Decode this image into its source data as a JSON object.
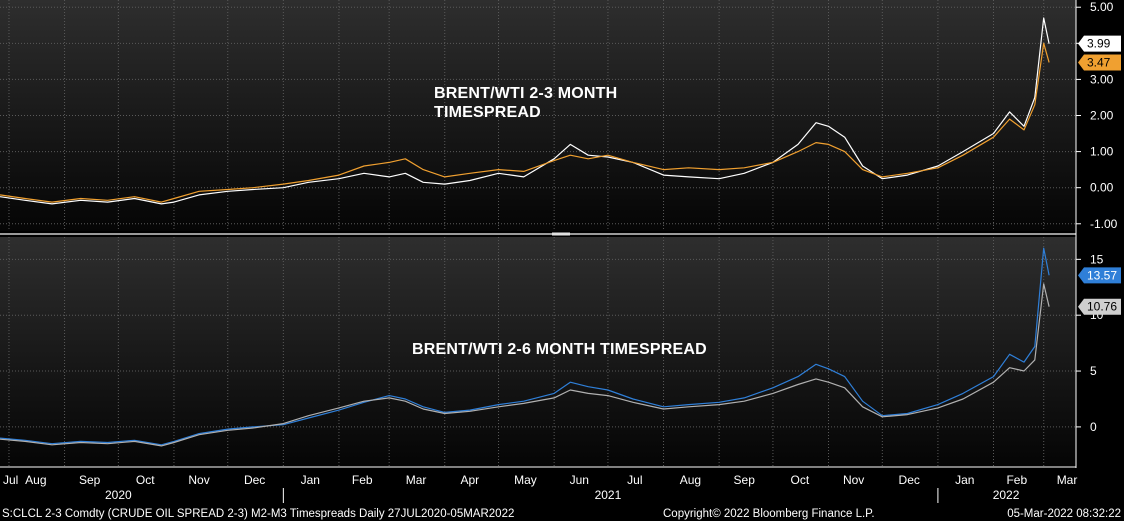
{
  "colors": {
    "background": "#000000",
    "panel_gradient_top": "#2b2b2b",
    "panel_gradient_bottom": "#050505",
    "grid": "#5a5a5a",
    "white_series": "#ffffff",
    "orange_series": "#f0a030",
    "blue_series": "#2f7fd8",
    "grey_series": "#b0b0b0"
  },
  "footer": {
    "left": "S:CLCL 2-3 Comdty (CRUDE OIL SPREAD 2-3) M2-M3 Timespreads Daily 27JUL2020-05MAR2022",
    "center": "Copyright© 2022 Bloomberg Finance L.P.",
    "right": "05-Mar-2022 08:32:22"
  },
  "x_axis": {
    "months": [
      "Jul",
      "Aug",
      "Sep",
      "Oct",
      "Nov",
      "Dec",
      "Jan",
      "Feb",
      "Mar",
      "Apr",
      "May",
      "Jun",
      "Jul",
      "Aug",
      "Sep",
      "Oct",
      "Nov",
      "Dec",
      "Jan",
      "Feb",
      "Mar"
    ],
    "years": [
      "2020",
      "2021",
      "2022"
    ]
  },
  "chart_data": [
    {
      "type": "line",
      "title": "BRENT/WTI 2-3 MONTH TIMESPREAD",
      "title_lines": [
        "BRENT/WTI 2-3 MONTH",
        "TIMESPREAD"
      ],
      "x_range": [
        "2020-07-27",
        "2022-03-05"
      ],
      "ylim": [
        -1.2,
        5.2
      ],
      "yticks": [
        "5.00",
        "4.00",
        "3.00",
        "2.00",
        "1.00",
        "0.00",
        "-1.00"
      ],
      "last_value_labels": [
        "3.99",
        "3.47"
      ],
      "series": [
        {
          "color": "#ffffff",
          "last": 3.99,
          "points": [
            [
              "2020-07-27",
              -0.25
            ],
            [
              "2020-08-10",
              -0.35
            ],
            [
              "2020-08-25",
              -0.45
            ],
            [
              "2020-09-10",
              -0.35
            ],
            [
              "2020-09-25",
              -0.4
            ],
            [
              "2020-10-10",
              -0.3
            ],
            [
              "2020-10-25",
              -0.45
            ],
            [
              "2020-11-01",
              -0.4
            ],
            [
              "2020-11-15",
              -0.2
            ],
            [
              "2020-12-01",
              -0.1
            ],
            [
              "2020-12-15",
              -0.05
            ],
            [
              "2021-01-01",
              0.0
            ],
            [
              "2021-01-15",
              0.15
            ],
            [
              "2021-02-01",
              0.25
            ],
            [
              "2021-02-15",
              0.4
            ],
            [
              "2021-03-01",
              0.3
            ],
            [
              "2021-03-10",
              0.4
            ],
            [
              "2021-03-20",
              0.15
            ],
            [
              "2021-04-01",
              0.1
            ],
            [
              "2021-04-15",
              0.2
            ],
            [
              "2021-05-01",
              0.4
            ],
            [
              "2021-05-15",
              0.3
            ],
            [
              "2021-06-01",
              0.8
            ],
            [
              "2021-06-10",
              1.2
            ],
            [
              "2021-06-20",
              0.9
            ],
            [
              "2021-07-01",
              0.85
            ],
            [
              "2021-07-15",
              0.7
            ],
            [
              "2021-08-01",
              0.35
            ],
            [
              "2021-08-15",
              0.3
            ],
            [
              "2021-09-01",
              0.25
            ],
            [
              "2021-09-15",
              0.4
            ],
            [
              "2021-10-01",
              0.7
            ],
            [
              "2021-10-15",
              1.2
            ],
            [
              "2021-10-25",
              1.8
            ],
            [
              "2021-11-01",
              1.7
            ],
            [
              "2021-11-10",
              1.4
            ],
            [
              "2021-11-20",
              0.6
            ],
            [
              "2021-12-01",
              0.25
            ],
            [
              "2021-12-15",
              0.35
            ],
            [
              "2022-01-01",
              0.6
            ],
            [
              "2022-01-15",
              1.0
            ],
            [
              "2022-02-01",
              1.5
            ],
            [
              "2022-02-10",
              2.1
            ],
            [
              "2022-02-18",
              1.7
            ],
            [
              "2022-02-24",
              2.5
            ],
            [
              "2022-03-01",
              4.7
            ],
            [
              "2022-03-04",
              3.99
            ]
          ]
        },
        {
          "color": "#f0a030",
          "last": 3.47,
          "points": [
            [
              "2020-07-27",
              -0.2
            ],
            [
              "2020-08-10",
              -0.3
            ],
            [
              "2020-08-25",
              -0.4
            ],
            [
              "2020-09-10",
              -0.3
            ],
            [
              "2020-09-25",
              -0.35
            ],
            [
              "2020-10-10",
              -0.25
            ],
            [
              "2020-10-25",
              -0.4
            ],
            [
              "2020-11-01",
              -0.3
            ],
            [
              "2020-11-15",
              -0.1
            ],
            [
              "2020-12-01",
              -0.05
            ],
            [
              "2020-12-15",
              0.0
            ],
            [
              "2021-01-01",
              0.1
            ],
            [
              "2021-01-15",
              0.2
            ],
            [
              "2021-02-01",
              0.35
            ],
            [
              "2021-02-15",
              0.6
            ],
            [
              "2021-03-01",
              0.7
            ],
            [
              "2021-03-10",
              0.8
            ],
            [
              "2021-03-20",
              0.5
            ],
            [
              "2021-04-01",
              0.3
            ],
            [
              "2021-04-15",
              0.4
            ],
            [
              "2021-05-01",
              0.5
            ],
            [
              "2021-05-15",
              0.45
            ],
            [
              "2021-06-01",
              0.75
            ],
            [
              "2021-06-10",
              0.9
            ],
            [
              "2021-06-20",
              0.8
            ],
            [
              "2021-07-01",
              0.9
            ],
            [
              "2021-07-15",
              0.7
            ],
            [
              "2021-08-01",
              0.5
            ],
            [
              "2021-08-15",
              0.55
            ],
            [
              "2021-09-01",
              0.5
            ],
            [
              "2021-09-15",
              0.55
            ],
            [
              "2021-10-01",
              0.7
            ],
            [
              "2021-10-15",
              1.0
            ],
            [
              "2021-10-25",
              1.25
            ],
            [
              "2021-11-01",
              1.2
            ],
            [
              "2021-11-10",
              1.0
            ],
            [
              "2021-11-20",
              0.5
            ],
            [
              "2021-12-01",
              0.3
            ],
            [
              "2021-12-15",
              0.4
            ],
            [
              "2022-01-01",
              0.55
            ],
            [
              "2022-01-15",
              0.9
            ],
            [
              "2022-02-01",
              1.4
            ],
            [
              "2022-02-10",
              1.9
            ],
            [
              "2022-02-18",
              1.6
            ],
            [
              "2022-02-24",
              2.3
            ],
            [
              "2022-03-01",
              4.0
            ],
            [
              "2022-03-04",
              3.47
            ]
          ]
        }
      ]
    },
    {
      "type": "line",
      "title": "BRENT/WTI 2-6 MONTH TIMESPREAD",
      "x_range": [
        "2020-07-27",
        "2022-03-05"
      ],
      "ylim": [
        -3.5,
        17
      ],
      "yticks": [
        "15",
        "10",
        "5",
        "0"
      ],
      "last_value_labels": [
        "13.57",
        "10.76"
      ],
      "series": [
        {
          "color": "#2f7fd8",
          "last": 13.57,
          "points": [
            [
              "2020-07-27",
              -1.0
            ],
            [
              "2020-08-10",
              -1.2
            ],
            [
              "2020-08-25",
              -1.5
            ],
            [
              "2020-09-10",
              -1.3
            ],
            [
              "2020-09-25",
              -1.4
            ],
            [
              "2020-10-10",
              -1.2
            ],
            [
              "2020-10-25",
              -1.6
            ],
            [
              "2020-11-01",
              -1.3
            ],
            [
              "2020-11-15",
              -0.6
            ],
            [
              "2020-12-01",
              -0.2
            ],
            [
              "2020-12-15",
              0.0
            ],
            [
              "2021-01-01",
              0.2
            ],
            [
              "2021-01-15",
              0.8
            ],
            [
              "2021-02-01",
              1.5
            ],
            [
              "2021-02-15",
              2.2
            ],
            [
              "2021-03-01",
              2.8
            ],
            [
              "2021-03-10",
              2.5
            ],
            [
              "2021-03-20",
              1.8
            ],
            [
              "2021-04-01",
              1.3
            ],
            [
              "2021-04-15",
              1.5
            ],
            [
              "2021-05-01",
              2.0
            ],
            [
              "2021-05-15",
              2.3
            ],
            [
              "2021-06-01",
              3.0
            ],
            [
              "2021-06-10",
              4.0
            ],
            [
              "2021-06-20",
              3.6
            ],
            [
              "2021-07-01",
              3.3
            ],
            [
              "2021-07-15",
              2.5
            ],
            [
              "2021-08-01",
              1.8
            ],
            [
              "2021-08-15",
              2.0
            ],
            [
              "2021-09-01",
              2.2
            ],
            [
              "2021-09-15",
              2.6
            ],
            [
              "2021-10-01",
              3.5
            ],
            [
              "2021-10-15",
              4.5
            ],
            [
              "2021-10-25",
              5.6
            ],
            [
              "2021-11-01",
              5.2
            ],
            [
              "2021-11-10",
              4.5
            ],
            [
              "2021-11-20",
              2.3
            ],
            [
              "2021-12-01",
              1.0
            ],
            [
              "2021-12-15",
              1.2
            ],
            [
              "2022-01-01",
              2.0
            ],
            [
              "2022-01-15",
              3.0
            ],
            [
              "2022-02-01",
              4.5
            ],
            [
              "2022-02-10",
              6.5
            ],
            [
              "2022-02-18",
              5.8
            ],
            [
              "2022-02-24",
              7.2
            ],
            [
              "2022-03-01",
              16.0
            ],
            [
              "2022-03-04",
              13.57
            ]
          ]
        },
        {
          "color": "#b0b0b0",
          "last": 10.76,
          "points": [
            [
              "2020-07-27",
              -1.1
            ],
            [
              "2020-08-10",
              -1.3
            ],
            [
              "2020-08-25",
              -1.6
            ],
            [
              "2020-09-10",
              -1.4
            ],
            [
              "2020-09-25",
              -1.5
            ],
            [
              "2020-10-10",
              -1.3
            ],
            [
              "2020-10-25",
              -1.7
            ],
            [
              "2020-11-01",
              -1.4
            ],
            [
              "2020-11-15",
              -0.7
            ],
            [
              "2020-12-01",
              -0.3
            ],
            [
              "2020-12-15",
              -0.1
            ],
            [
              "2021-01-01",
              0.3
            ],
            [
              "2021-01-15",
              1.0
            ],
            [
              "2021-02-01",
              1.7
            ],
            [
              "2021-02-15",
              2.3
            ],
            [
              "2021-03-01",
              2.6
            ],
            [
              "2021-03-10",
              2.3
            ],
            [
              "2021-03-20",
              1.6
            ],
            [
              "2021-04-01",
              1.2
            ],
            [
              "2021-04-15",
              1.4
            ],
            [
              "2021-05-01",
              1.8
            ],
            [
              "2021-05-15",
              2.1
            ],
            [
              "2021-06-01",
              2.6
            ],
            [
              "2021-06-10",
              3.3
            ],
            [
              "2021-06-20",
              3.0
            ],
            [
              "2021-07-01",
              2.8
            ],
            [
              "2021-07-15",
              2.2
            ],
            [
              "2021-08-01",
              1.6
            ],
            [
              "2021-08-15",
              1.8
            ],
            [
              "2021-09-01",
              2.0
            ],
            [
              "2021-09-15",
              2.3
            ],
            [
              "2021-10-01",
              3.0
            ],
            [
              "2021-10-15",
              3.8
            ],
            [
              "2021-10-25",
              4.3
            ],
            [
              "2021-11-01",
              4.0
            ],
            [
              "2021-11-10",
              3.5
            ],
            [
              "2021-11-20",
              1.8
            ],
            [
              "2021-12-01",
              0.9
            ],
            [
              "2021-12-15",
              1.1
            ],
            [
              "2022-01-01",
              1.7
            ],
            [
              "2022-01-15",
              2.5
            ],
            [
              "2022-02-01",
              4.0
            ],
            [
              "2022-02-10",
              5.3
            ],
            [
              "2022-02-18",
              5.0
            ],
            [
              "2022-02-24",
              6.0
            ],
            [
              "2022-03-01",
              12.8
            ],
            [
              "2022-03-04",
              10.76
            ]
          ]
        }
      ]
    }
  ]
}
